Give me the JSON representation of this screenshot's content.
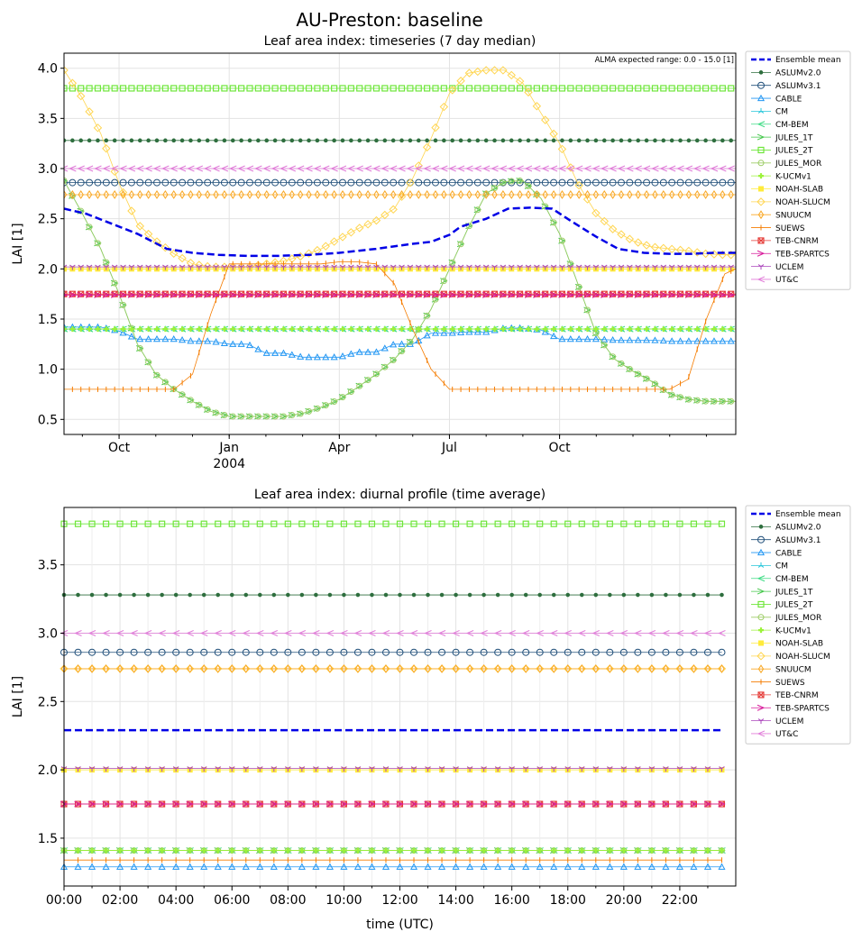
{
  "suptitle": "AU-Preston: baseline",
  "chart_data": [
    {
      "type": "line",
      "title": "Leaf area index: timeseries (7 day median)",
      "ylabel": "LAI [1]",
      "xlabel": "",
      "annotation": "ALMA expected range: 0.0 - 15.0 [1]",
      "x_range_months": [
        8.5,
        26.8
      ],
      "ylim": [
        0.35,
        4.15
      ],
      "yticks": [
        "0.5",
        "1.0",
        "1.5",
        "2.0",
        "2.5",
        "3.0",
        "3.5",
        "4.0"
      ],
      "xticks": [
        {
          "label": "Oct",
          "sub": "",
          "month": 10
        },
        {
          "label": "Jan",
          "sub": "2004",
          "month": 13
        },
        {
          "label": "Apr",
          "sub": "",
          "month": 16
        },
        {
          "label": "Jul",
          "sub": "",
          "month": 19
        },
        {
          "label": "Oct",
          "sub": "",
          "month": 22
        }
      ],
      "grid": true,
      "legend": "outside-right",
      "series": [
        {
          "name": "Ensemble mean",
          "color": "#0000e6",
          "marker": "none",
          "dash": true,
          "width": 2.5,
          "x": [
            8.5,
            9.1,
            9.8,
            10.5,
            11.3,
            12,
            12.7,
            13.5,
            14.3,
            15.2,
            16,
            17,
            18,
            18.5,
            19,
            19.3,
            20,
            20.6,
            21.2,
            21.8,
            22.3,
            23,
            23.6,
            24.3,
            25,
            25.6,
            26.2,
            26.8
          ],
          "y": [
            2.6,
            2.55,
            2.45,
            2.35,
            2.2,
            2.16,
            2.14,
            2.13,
            2.13,
            2.14,
            2.16,
            2.2,
            2.25,
            2.27,
            2.34,
            2.42,
            2.5,
            2.6,
            2.61,
            2.6,
            2.48,
            2.32,
            2.2,
            2.16,
            2.15,
            2.15,
            2.16,
            2.16
          ]
        },
        {
          "name": "ASLUMv2.0",
          "color": "#2e6e3e",
          "marker": "dot",
          "x": [
            8.5,
            26.8
          ],
          "y": [
            3.28,
            3.28
          ]
        },
        {
          "name": "ASLUMv3.1",
          "color": "#1f4e79",
          "marker": "circle",
          "x": [
            8.5,
            26.8
          ],
          "y": [
            2.86,
            2.86
          ]
        },
        {
          "name": "CABLE",
          "color": "#2196f3",
          "marker": "triangle",
          "x": [
            8.5,
            9,
            9.5,
            10,
            10.5,
            11,
            11.5,
            12,
            12.5,
            13,
            13.5,
            14,
            14.5,
            15,
            15.5,
            16,
            16.5,
            17,
            17.5,
            18,
            18.5,
            19,
            19.5,
            20,
            20.5,
            21,
            21.5,
            22,
            22.5,
            23,
            23.5,
            24,
            24.5,
            25,
            25.5,
            26,
            26.5,
            26.8
          ],
          "y": [
            1.42,
            1.42,
            1.42,
            1.38,
            1.3,
            1.3,
            1.3,
            1.28,
            1.28,
            1.25,
            1.25,
            1.16,
            1.16,
            1.12,
            1.12,
            1.12,
            1.17,
            1.17,
            1.25,
            1.25,
            1.36,
            1.36,
            1.37,
            1.37,
            1.41,
            1.41,
            1.39,
            1.3,
            1.3,
            1.3,
            1.29,
            1.29,
            1.29,
            1.28,
            1.28,
            1.28,
            1.28,
            1.28
          ]
        },
        {
          "name": "CM",
          "color": "#26c6da",
          "marker": "tri_up",
          "x": [
            8.5,
            26.8
          ],
          "y": [
            1.4,
            1.4
          ]
        },
        {
          "name": "CM-BEM",
          "color": "#3ddc84",
          "marker": "tri_left",
          "x": [
            8.5,
            26.8
          ],
          "y": [
            1.4,
            1.4
          ]
        },
        {
          "name": "JULES_1T",
          "color": "#43c74a",
          "marker": "tri_right",
          "x": [
            8.5,
            9.0,
            9.5,
            10.0,
            10.5,
            11.0,
            11.5,
            12.0,
            12.5,
            13.0,
            13.5,
            14.0,
            14.5,
            15.0,
            15.5,
            16.0,
            16.5,
            17.0,
            17.5,
            18.0,
            18.5,
            19.0,
            19.5,
            20.0,
            20.5,
            21.0,
            21.5,
            22.0,
            22.5,
            23.0,
            23.5,
            24.0,
            24.5,
            25.0,
            25.5,
            26.0,
            26.5,
            26.8
          ],
          "y": [
            2.88,
            2.55,
            2.2,
            1.75,
            1.25,
            0.95,
            0.8,
            0.68,
            0.58,
            0.53,
            0.53,
            0.53,
            0.53,
            0.56,
            0.62,
            0.7,
            0.82,
            0.95,
            1.1,
            1.3,
            1.6,
            2.0,
            2.4,
            2.75,
            2.87,
            2.88,
            2.7,
            2.35,
            1.85,
            1.35,
            1.1,
            0.98,
            0.88,
            0.75,
            0.7,
            0.68,
            0.68,
            0.68
          ]
        },
        {
          "name": "JULES_2T",
          "color": "#6ee63a",
          "marker": "square",
          "x": [
            8.5,
            26.8
          ],
          "y": [
            3.8,
            3.8
          ]
        },
        {
          "name": "JULES_MOR",
          "color": "#9ccc65",
          "marker": "hexagon",
          "x": [
            8.5,
            9.0,
            9.5,
            10.0,
            10.5,
            11.0,
            11.5,
            12.0,
            12.5,
            13.0,
            13.5,
            14.0,
            14.5,
            15.0,
            15.5,
            16.0,
            16.5,
            17.0,
            17.5,
            18.0,
            18.5,
            19.0,
            19.5,
            20.0,
            20.5,
            21.0,
            21.5,
            22.0,
            22.5,
            23.0,
            23.5,
            24.0,
            24.5,
            25.0,
            25.5,
            26.0,
            26.5,
            26.8
          ],
          "y": [
            2.88,
            2.55,
            2.2,
            1.75,
            1.25,
            0.95,
            0.8,
            0.68,
            0.58,
            0.53,
            0.53,
            0.53,
            0.53,
            0.56,
            0.62,
            0.7,
            0.82,
            0.95,
            1.1,
            1.3,
            1.6,
            2.0,
            2.4,
            2.75,
            2.87,
            2.88,
            2.7,
            2.35,
            1.85,
            1.35,
            1.1,
            0.98,
            0.88,
            0.75,
            0.7,
            0.68,
            0.68,
            0.68
          ]
        },
        {
          "name": "K-UCMv1",
          "color": "#9cf23a",
          "marker": "plus_filled",
          "x": [
            8.5,
            26.8
          ],
          "y": [
            1.4,
            1.4
          ]
        },
        {
          "name": "NOAH-SLAB",
          "color": "#ffeb3b",
          "marker": "square_filled",
          "x": [
            8.5,
            26.8
          ],
          "y": [
            2.0,
            2.0
          ]
        },
        {
          "name": "NOAH-SLUCM",
          "color": "#ffd54f",
          "marker": "diamond",
          "x": [
            8.5,
            9.0,
            9.5,
            10.0,
            10.5,
            11.0,
            11.5,
            12.0,
            12.5,
            13.0,
            13.5,
            14.0,
            14.5,
            15.0,
            15.5,
            16.0,
            16.5,
            17.0,
            17.5,
            18.0,
            18.5,
            19.0,
            19.5,
            20.0,
            20.5,
            21.0,
            21.5,
            22.0,
            22.5,
            23.0,
            23.5,
            24.0,
            24.5,
            25.0,
            25.5,
            26.0,
            26.5,
            26.8
          ],
          "y": [
            3.98,
            3.7,
            3.35,
            2.85,
            2.45,
            2.28,
            2.15,
            2.05,
            2.02,
            2.02,
            2.02,
            2.05,
            2.08,
            2.13,
            2.2,
            2.3,
            2.4,
            2.48,
            2.6,
            2.9,
            3.3,
            3.75,
            3.95,
            3.98,
            3.98,
            3.85,
            3.55,
            3.25,
            2.85,
            2.55,
            2.38,
            2.28,
            2.22,
            2.2,
            2.18,
            2.15,
            2.14,
            2.14
          ]
        },
        {
          "name": "SNUUCM",
          "color": "#f9a825",
          "marker": "thin_diamond",
          "x": [
            8.5,
            26.8
          ],
          "y": [
            2.74,
            2.74
          ]
        },
        {
          "name": "SUEWS",
          "color": "#f57c00",
          "marker": "vline",
          "x": [
            8.5,
            9.0,
            9.5,
            10.0,
            10.5,
            11.0,
            11.5,
            12.0,
            12.5,
            13.0,
            13.5,
            14.0,
            14.5,
            15.0,
            15.5,
            16.0,
            16.5,
            17.0,
            17.5,
            18.0,
            18.5,
            19.0,
            19.5,
            20.0,
            20.5,
            21.0,
            21.5,
            22.0,
            22.5,
            23.0,
            23.5,
            24.0,
            24.5,
            25.0,
            25.5,
            26.0,
            26.5,
            26.8
          ],
          "y": [
            0.8,
            0.8,
            0.8,
            0.8,
            0.8,
            0.8,
            0.8,
            0.95,
            1.55,
            2.05,
            2.05,
            2.05,
            2.05,
            2.05,
            2.05,
            2.07,
            2.07,
            2.05,
            1.85,
            1.4,
            1.0,
            0.8,
            0.8,
            0.8,
            0.8,
            0.8,
            0.8,
            0.8,
            0.8,
            0.8,
            0.8,
            0.8,
            0.8,
            0.8,
            0.9,
            1.5,
            1.95,
            2.0
          ]
        },
        {
          "name": "TEB-CNRM",
          "color": "#e53935",
          "marker": "square_x",
          "x": [
            8.5,
            26.8
          ],
          "y": [
            1.75,
            1.75
          ]
        },
        {
          "name": "TEB-SPARTACUS",
          "color": "#d81b9b",
          "marker": "tri_right",
          "x": [
            8.5,
            26.8
          ],
          "y": [
            1.74,
            1.74
          ]
        },
        {
          "name": "UCLEM",
          "color": "#ab47bc",
          "marker": "tri_down",
          "x": [
            8.5,
            26.8
          ],
          "y": [
            2.02,
            2.02
          ]
        },
        {
          "name": "UT&C",
          "color": "#e07ad8",
          "marker": "tri_left",
          "x": [
            8.5,
            26.8
          ],
          "y": [
            3.0,
            3.0
          ]
        }
      ]
    },
    {
      "type": "line",
      "title": "Leaf area index: diurnal profile (time average)",
      "ylabel": "LAI [1]",
      "xlabel": "time (UTC)",
      "xlim": [
        0,
        24
      ],
      "ylim": [
        1.15,
        3.92
      ],
      "yticks": [
        "1.5",
        "2.0",
        "2.5",
        "3.0",
        "3.5"
      ],
      "xticks": [
        "00:00",
        "02:00",
        "04:00",
        "06:00",
        "08:00",
        "10:00",
        "12:00",
        "14:00",
        "16:00",
        "18:00",
        "20:00",
        "22:00"
      ],
      "grid": true,
      "legend": "outside-right",
      "series": [
        {
          "name": "Ensemble mean",
          "value": 2.29
        },
        {
          "name": "ASLUMv2.0",
          "value": 3.28
        },
        {
          "name": "ASLUMv3.1",
          "value": 2.86
        },
        {
          "name": "CABLE",
          "value": 1.29
        },
        {
          "name": "CM",
          "value": 1.41
        },
        {
          "name": "CM-BEM",
          "value": 1.41
        },
        {
          "name": "JULES_1T",
          "value": 1.41
        },
        {
          "name": "JULES_2T",
          "value": 3.8
        },
        {
          "name": "JULES_MOR",
          "value": 1.41
        },
        {
          "name": "K-UCMv1",
          "value": 1.41
        },
        {
          "name": "NOAH-SLAB",
          "value": 2.0
        },
        {
          "name": "NOAH-SLUCM",
          "value": 2.74
        },
        {
          "name": "SNUUCM",
          "value": 2.74
        },
        {
          "name": "SUEWS",
          "value": 1.34
        },
        {
          "name": "TEB-CNRM",
          "value": 1.75
        },
        {
          "name": "TEB-SPARTACUS",
          "value": 1.75
        },
        {
          "name": "UCLEM",
          "value": 2.01
        },
        {
          "name": "UT&C",
          "value": 3.0
        }
      ]
    }
  ],
  "legend_labels": [
    "Ensemble mean",
    "ASLUMv2.0",
    "ASLUMv3.1",
    "CABLE",
    "CM",
    "CM-BEM",
    "JULES_1T",
    "JULES_2T",
    "JULES_MOR",
    "K-UCMv1",
    "NOAH-SLAB",
    "NOAH-SLUCM",
    "SNUUCM",
    "SUEWS",
    "TEB-CNRM",
    "TEB-SPARTCS",
    "UCLEM",
    "UT&C"
  ]
}
